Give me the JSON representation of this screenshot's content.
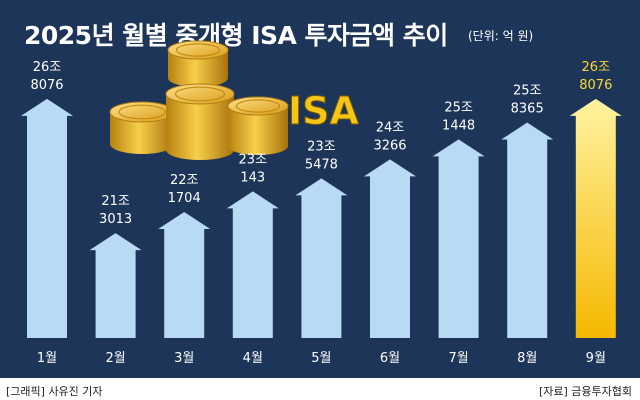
{
  "header": {
    "title": "2025년 월별 중개형 ISA 투자금액 추이",
    "unit": "(단위: 억 원)"
  },
  "decoration": {
    "logo_text": "ISA",
    "logo_color": "#f5c518",
    "coin_color": "#e2a820"
  },
  "colors": {
    "background": "#1d3559",
    "arrow": "#b8daf5",
    "highlight_top": "#fff3a0",
    "highlight_bottom": "#f5b800",
    "label": "#ffffff",
    "highlight_label": "#ffd633"
  },
  "footer": {
    "credit": "[그래픽] 사유진 기자",
    "source": "[자료] 금융투자협회"
  },
  "chart_data": {
    "type": "bar",
    "title": "2025년 월별 중개형 ISA 투자금액 추이",
    "unit": "억 원",
    "categories": [
      "1월",
      "2월",
      "3월",
      "4월",
      "5월",
      "6월",
      "7월",
      "8월",
      "9월"
    ],
    "values": [
      268076,
      213013,
      221704,
      230143,
      235478,
      243266,
      251448,
      258365,
      268076
    ],
    "value_labels": [
      [
        "26조",
        "8076"
      ],
      [
        "21조",
        "3013"
      ],
      [
        "22조",
        "1704"
      ],
      [
        "23조",
        "143"
      ],
      [
        "23조",
        "5478"
      ],
      [
        "24조",
        "3266"
      ],
      [
        "25조",
        "1448"
      ],
      [
        "25조",
        "8365"
      ],
      [
        "26조",
        "8076"
      ]
    ],
    "highlight_index": 8,
    "ylim": [
      170000,
      275000
    ]
  }
}
